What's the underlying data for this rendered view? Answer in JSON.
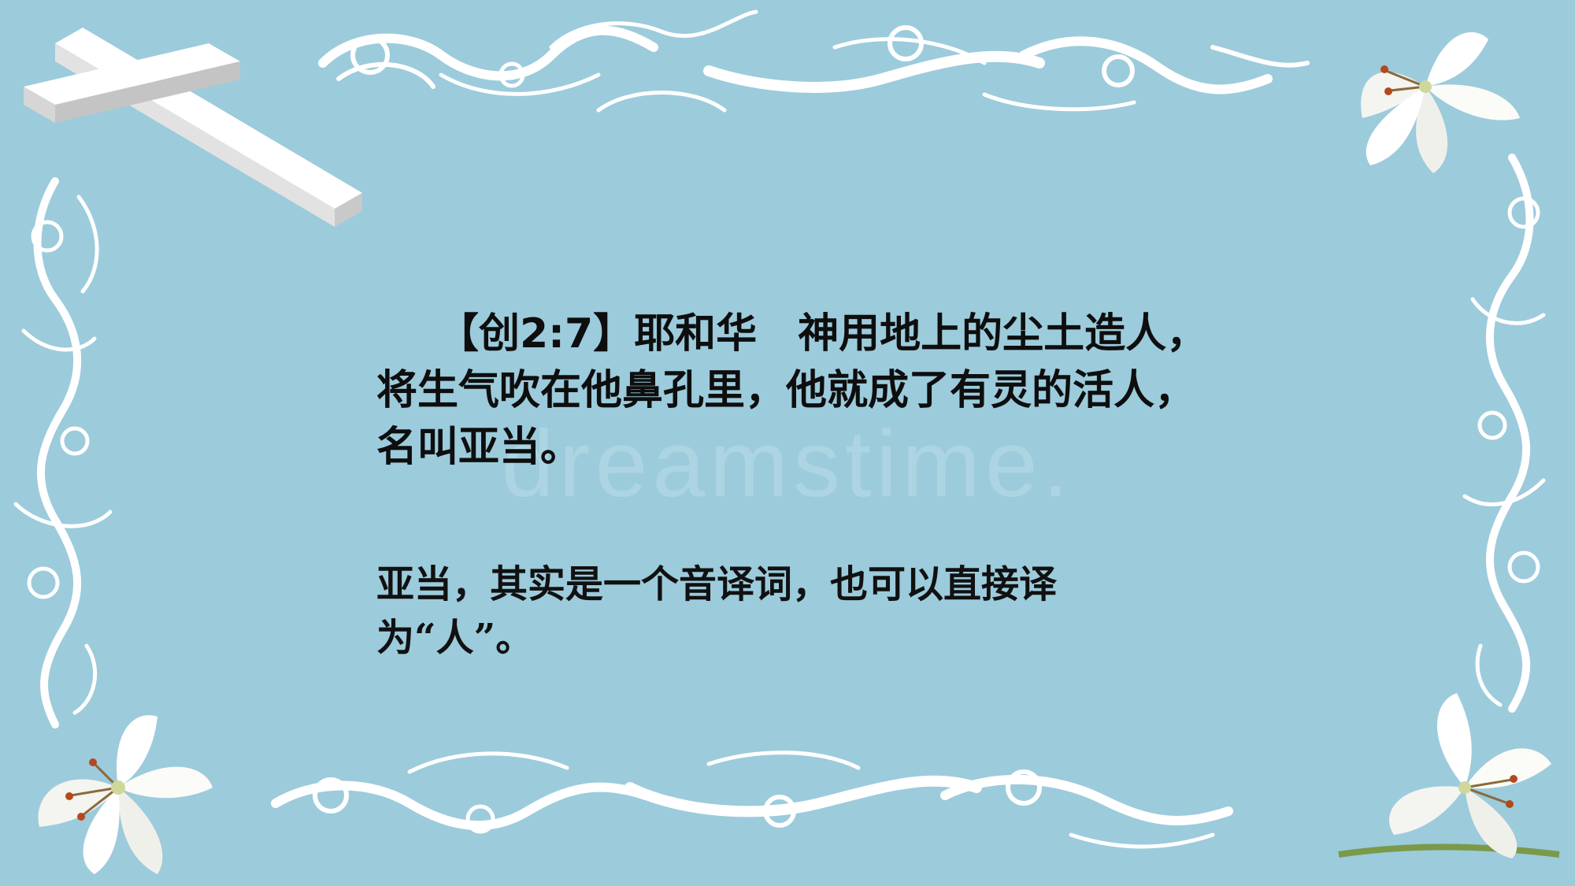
{
  "slide": {
    "verse_text": "【创2:7】耶和华　神用地上的尘土造人，将生气吹在他鼻孔里，他就成了有灵的活人，名叫亚当。",
    "note_text": "亚当，其实是一个音译词，也可以直接译为“人”。",
    "watermark_text": "dreamstime.",
    "colors": {
      "background": "#9ccbdc",
      "scroll_white": "#ffffff",
      "text": "#0e0e0e"
    },
    "decorations": [
      "cross-icon",
      "lily-flower-icon",
      "swirl-border"
    ]
  }
}
